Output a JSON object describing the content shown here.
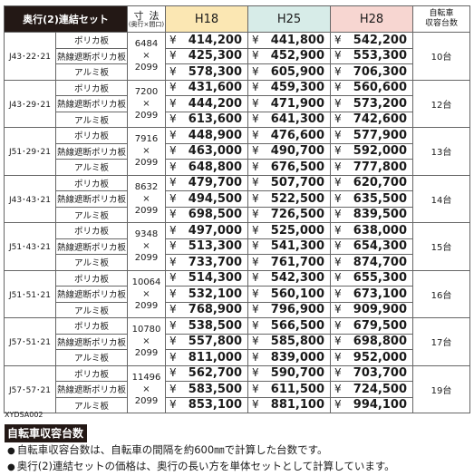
{
  "header": {
    "model": "奥行(2)連結セット",
    "dim_line1": "寸法",
    "dim_line2": "(奥行×間口)",
    "h18": "H18",
    "h25": "H25",
    "h28": "H28",
    "bike_line1": "自転車",
    "bike_line2": "収容台数"
  },
  "currency": "¥",
  "times": "×",
  "rows": [
    {
      "model": "J43･22･21",
      "depth": "6484",
      "width": "2099",
      "bikes": "10台",
      "materials": [
        {
          "name": "ポリカ板",
          "h18": "414,200",
          "h25": "441,800",
          "h28": "542,200"
        },
        {
          "name": "熱線遮断ポリカ板",
          "h18": "425,300",
          "h25": "452,900",
          "h28": "553,300"
        },
        {
          "name": "アルミ板",
          "h18": "578,300",
          "h25": "605,900",
          "h28": "706,300"
        }
      ]
    },
    {
      "model": "J43･29･21",
      "depth": "7200",
      "width": "2099",
      "bikes": "12台",
      "materials": [
        {
          "name": "ポリカ板",
          "h18": "431,600",
          "h25": "459,300",
          "h28": "560,600"
        },
        {
          "name": "熱線遮断ポリカ板",
          "h18": "444,200",
          "h25": "471,900",
          "h28": "573,200"
        },
        {
          "name": "アルミ板",
          "h18": "613,600",
          "h25": "641,300",
          "h28": "742,600"
        }
      ]
    },
    {
      "model": "J51･29･21",
      "depth": "7916",
      "width": "2099",
      "bikes": "13台",
      "materials": [
        {
          "name": "ポリカ板",
          "h18": "448,900",
          "h25": "476,600",
          "h28": "577,900"
        },
        {
          "name": "熱線遮断ポリカ板",
          "h18": "463,000",
          "h25": "490,700",
          "h28": "592,000"
        },
        {
          "name": "アルミ板",
          "h18": "648,800",
          "h25": "676,500",
          "h28": "777,800"
        }
      ]
    },
    {
      "model": "J43･43･21",
      "depth": "8632",
      "width": "2099",
      "bikes": "14台",
      "materials": [
        {
          "name": "ポリカ板",
          "h18": "479,700",
          "h25": "507,700",
          "h28": "620,700"
        },
        {
          "name": "熱線遮断ポリカ板",
          "h18": "494,500",
          "h25": "522,500",
          "h28": "635,500"
        },
        {
          "name": "アルミ板",
          "h18": "698,500",
          "h25": "726,500",
          "h28": "839,500"
        }
      ]
    },
    {
      "model": "J51･43･21",
      "depth": "9348",
      "width": "2099",
      "bikes": "15台",
      "materials": [
        {
          "name": "ポリカ板",
          "h18": "497,000",
          "h25": "525,000",
          "h28": "638,000"
        },
        {
          "name": "熱線遮断ポリカ板",
          "h18": "513,300",
          "h25": "541,300",
          "h28": "654,300"
        },
        {
          "name": "アルミ板",
          "h18": "733,700",
          "h25": "761,700",
          "h28": "874,700"
        }
      ]
    },
    {
      "model": "J51･51･21",
      "depth": "10064",
      "width": "2099",
      "bikes": "16台",
      "materials": [
        {
          "name": "ポリカ板",
          "h18": "514,300",
          "h25": "542,300",
          "h28": "655,300"
        },
        {
          "name": "熱線遮断ポリカ板",
          "h18": "532,100",
          "h25": "560,100",
          "h28": "673,100"
        },
        {
          "name": "アルミ板",
          "h18": "768,900",
          "h25": "796,900",
          "h28": "909,900"
        }
      ]
    },
    {
      "model": "J57･51･21",
      "depth": "10780",
      "width": "2099",
      "bikes": "17台",
      "materials": [
        {
          "name": "ポリカ板",
          "h18": "538,500",
          "h25": "566,500",
          "h28": "679,500"
        },
        {
          "name": "熱線遮断ポリカ板",
          "h18": "557,800",
          "h25": "585,800",
          "h28": "698,800"
        },
        {
          "name": "アルミ板",
          "h18": "811,000",
          "h25": "839,000",
          "h28": "952,000"
        }
      ]
    },
    {
      "model": "J57･57･21",
      "depth": "11496",
      "width": "2099",
      "bikes": "19台",
      "materials": [
        {
          "name": "ポリカ板",
          "h18": "562,700",
          "h25": "590,700",
          "h28": "703,700"
        },
        {
          "name": "熱線遮断ポリカ板",
          "h18": "583,500",
          "h25": "611,500",
          "h28": "724,500"
        },
        {
          "name": "アルミ板",
          "h18": "853,100",
          "h25": "881,100",
          "h28": "994,100"
        }
      ]
    }
  ],
  "code": "XYDSA002",
  "note_title": "自転車収容台数",
  "notes": [
    "自転車収容台数は、自転車の間隔を約600㎜で計算した台数です。",
    "奥行(2)連結セットの価格は、奥行の長い方を単体セットとして計算しています。"
  ],
  "bullet": "●"
}
